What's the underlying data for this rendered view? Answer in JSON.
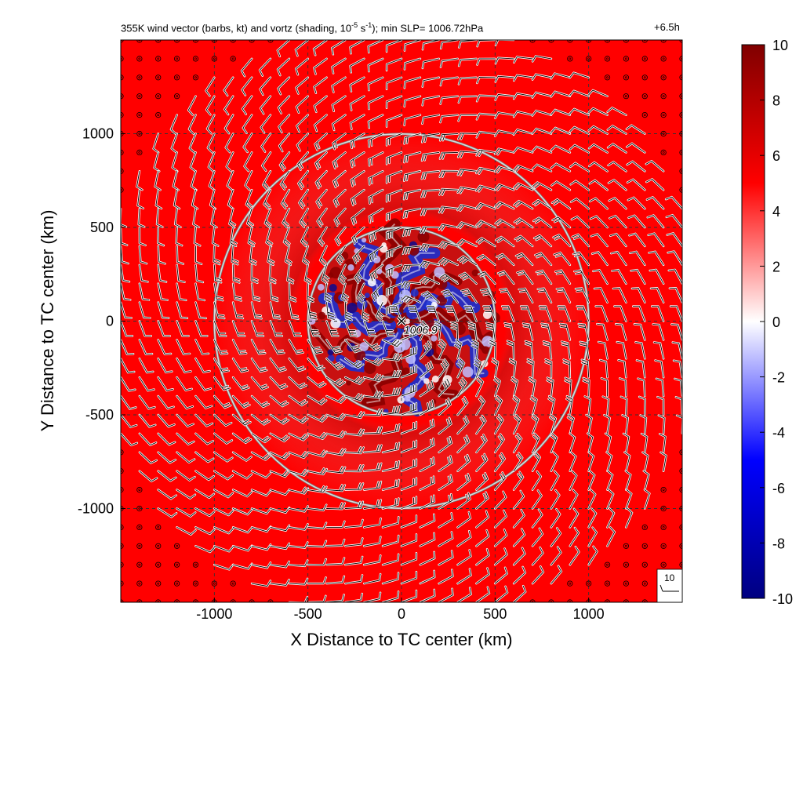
{
  "chart_data": {
    "type": "heatmap",
    "title_parts": {
      "a": "355K wind vector (barbs, kt) and vortz (shading, 10",
      "b": "-5",
      "c": " s",
      "d": "-1",
      "e": "); min SLP= 1006.72hPa"
    },
    "time_label": "+6.5h",
    "xlabel": "X Distance to TC center (km)",
    "ylabel": "Y Distance to TC center (km)",
    "xlim": [
      -1500,
      1500
    ],
    "ylim": [
      -1500,
      1500
    ],
    "xticks": [
      -1000,
      -500,
      0,
      500,
      1000
    ],
    "yticks": [
      -1000,
      -500,
      0,
      500,
      1000
    ],
    "xtick_labels": [
      "-1000",
      "-500",
      "0",
      "500",
      "1000"
    ],
    "ytick_labels": [
      "-1000",
      "-500",
      "0",
      "500",
      "1000"
    ],
    "grid": true,
    "colorbar": {
      "ticks": [
        10,
        8,
        6,
        4,
        2,
        0,
        -2,
        -4,
        -6,
        -8,
        -10
      ],
      "tick_labels": [
        "10",
        "8",
        "6",
        "4",
        "2",
        "0",
        "-2",
        "-4",
        "-6",
        "-8",
        "-10"
      ],
      "range": [
        -10,
        10
      ],
      "colormap": [
        "#000080",
        "#0000ff",
        "#ffffff",
        "#ff0000",
        "#800000"
      ]
    },
    "background_vorticity": 5,
    "rings_km": [
      500,
      1000
    ],
    "center_label": "1006.9",
    "center": [
      0,
      0
    ],
    "barb_key_label": "10",
    "barb_spacing_km": 100
  },
  "colors": {
    "background": "#ef4747",
    "ring": "#d9d9d9",
    "grid": "#333333"
  }
}
